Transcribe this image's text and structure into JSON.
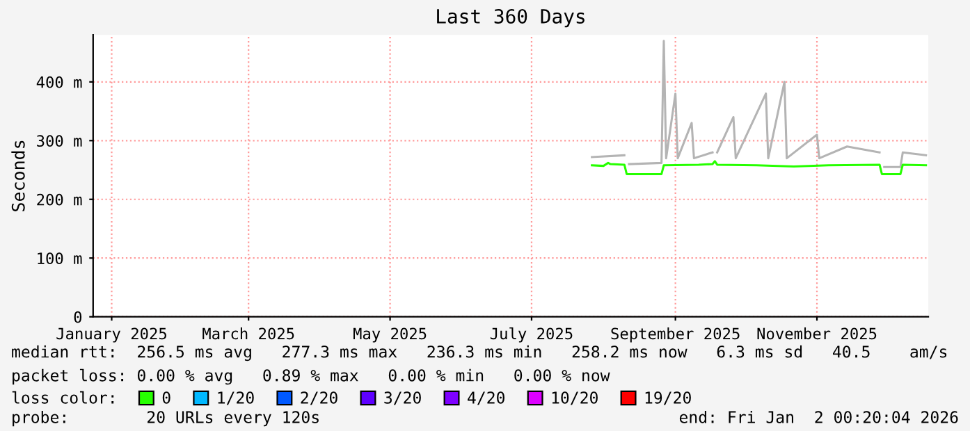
{
  "chart_data": {
    "type": "line",
    "title": "Last 360 Days",
    "ylabel": "Seconds",
    "xlim": [
      "2025-01-07",
      "2026-01-02"
    ],
    "xticks": [
      {
        "value": "2025-01-15",
        "label": "January 2025"
      },
      {
        "value": "2025-03-15",
        "label": "March 2025"
      },
      {
        "value": "2025-05-15",
        "label": "May 2025"
      },
      {
        "value": "2025-07-15",
        "label": "July 2025"
      },
      {
        "value": "2025-09-15",
        "label": "September 2025"
      },
      {
        "value": "2025-11-15",
        "label": "November 2025"
      }
    ],
    "ylim": [
      0,
      480
    ],
    "yticks": [
      0,
      {
        "value": 100,
        "label": "100 m"
      },
      {
        "value": 200,
        "label": "200 m"
      },
      {
        "value": 300,
        "label": "300 m"
      },
      {
        "value": 400,
        "label": "400 m"
      }
    ],
    "grid": true,
    "legend": "bottom",
    "legend_title": "loss color:",
    "series": [
      {
        "color": "#b4b4b4",
        "x": [
          "2025-08-10",
          "2025-08-24",
          "2025-08-25",
          "2025-08-26",
          "2025-09-09",
          "2025-09-10",
          "2025-09-11",
          "2025-09-15",
          "2025-09-16",
          "2025-09-22",
          "2025-09-23",
          "2025-10-01",
          "2025-10-02",
          "2025-10-03",
          "2025-10-10",
          "2025-10-11",
          "2025-10-24",
          "2025-10-25",
          "2025-11-01",
          "2025-11-02",
          "2025-11-15",
          "2025-11-16",
          "2025-11-28",
          "2025-12-12",
          "2025-12-13",
          "2025-12-14",
          "2025-12-21",
          "2025-12-22",
          "2026-01-01"
        ],
        "values": [
          272,
          275,
          null,
          260,
          262,
          470,
          270,
          380,
          270,
          330,
          270,
          280,
          null,
          280,
          340,
          270,
          380,
          270,
          400,
          270,
          310,
          270,
          290,
          280,
          null,
          255,
          255,
          280,
          275
        ]
      },
      {
        "name": "0",
        "color": "#26ff00",
        "x": [
          "2025-08-10",
          "2025-08-15",
          "2025-08-17",
          "2025-08-18",
          "2025-08-24",
          "2025-08-25",
          "2025-09-09",
          "2025-09-10",
          "2025-09-25",
          "2025-10-01",
          "2025-10-02",
          "2025-10-03",
          "2025-10-20",
          "2025-11-05",
          "2025-11-20",
          "2025-12-12",
          "2025-12-13",
          "2025-12-21",
          "2025-12-22",
          "2026-01-01"
        ],
        "values": [
          258,
          257,
          262,
          260,
          259,
          243,
          243,
          258,
          259,
          260,
          265,
          259,
          258,
          256,
          258,
          259,
          243,
          243,
          259,
          258
        ]
      },
      {
        "name": "1/20",
        "color": "#00b8ff"
      },
      {
        "name": "2/20",
        "color": "#0059ff"
      },
      {
        "name": "3/20",
        "color": "#5e00ff"
      },
      {
        "name": "4/20",
        "color": "#7e00ff"
      },
      {
        "name": "10/20",
        "color": "#dd00ff"
      },
      {
        "name": "19/20",
        "color": "#ff0000"
      }
    ],
    "annotations": [
      "median rtt:  256.5 ms avg   277.3 ms max   236.3 ms min   258.2 ms now   6.3 ms sd   40.5    am/s",
      "packet loss: 0.00 % avg   0.89 % max   0.00 % min   0.00 % now",
      "probe:        20 URLs every 120s",
      "end: Fri Jan  2 00:20:04 2026"
    ]
  }
}
